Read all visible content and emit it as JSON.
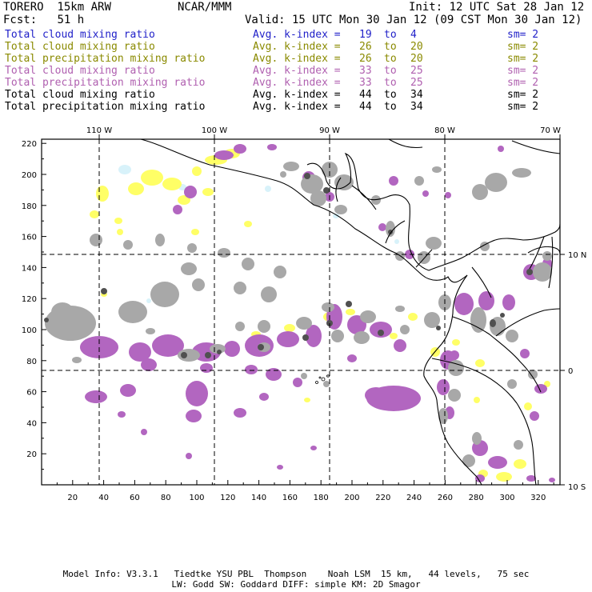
{
  "header": {
    "model": "TORERO",
    "resolution": "15km ARW",
    "org": "NCAR/MMM",
    "init": "Init: 12 UTC Sat 28 Jan 12",
    "fcst_label": "Fcst:",
    "fcst_value": "51 h",
    "valid": "Valid: 15 UTC Mon 30 Jan 12 (09 CST Mon 30 Jan 12)"
  },
  "legend": [
    {
      "field": "Total cloud mixing ratio",
      "index_label": "Avg. k-index =",
      "from": "19",
      "to_word": "to",
      "to": "4",
      "sm": "sm= 2",
      "color": "#1f1fc8"
    },
    {
      "field": "Total cloud mixing ratio",
      "index_label": "Avg. k-index =",
      "from": "26",
      "to_word": "to",
      "to": "20",
      "sm": "sm= 2",
      "color": "#8a8a00"
    },
    {
      "field": "Total precipitation mixing ratio",
      "index_label": "Avg. k-index =",
      "from": "26",
      "to_word": "to",
      "to": "20",
      "sm": "sm= 2",
      "color": "#8a8a00"
    },
    {
      "field": "Total cloud mixing ratio",
      "index_label": "Avg. k-index =",
      "from": "33",
      "to_word": "to",
      "to": "25",
      "sm": "sm= 2",
      "color": "#b060b0"
    },
    {
      "field": "Total precipitation mixing ratio",
      "index_label": "Avg. k-index =",
      "from": "33",
      "to_word": "to",
      "to": "25",
      "sm": "sm= 2",
      "color": "#b060b0"
    },
    {
      "field": "Total cloud mixing ratio",
      "index_label": "Avg. k-index =",
      "from": "44",
      "to_word": "to",
      "to": "34",
      "sm": "sm= 2",
      "color": "#000000"
    },
    {
      "field": "Total precipitation mixing ratio",
      "index_label": "Avg. k-index =",
      "from": "44",
      "to_word": "to",
      "to": "34",
      "sm": "sm= 2",
      "color": "#000000"
    }
  ],
  "map": {
    "lon_labels": [
      "110 W",
      "100 W",
      "90 W",
      "80 W",
      "70 W"
    ],
    "lat_labels": [
      "10 N",
      "0",
      "10 S"
    ],
    "x_ticks": [
      "20",
      "40",
      "60",
      "80",
      "100",
      "120",
      "140",
      "160",
      "180",
      "200",
      "220",
      "240",
      "260",
      "280",
      "300",
      "320"
    ],
    "y_ticks": [
      "20",
      "40",
      "60",
      "80",
      "100",
      "120",
      "140",
      "160",
      "180",
      "200",
      "220"
    ],
    "colors": {
      "cloud_light": "#d8f2fa",
      "cloud_yellow": "#ffff66",
      "precip_purple": "#b266c0",
      "cloud_gray": "#a8a8a8",
      "cloud_dark": "#505050",
      "coastline": "#000000"
    }
  },
  "footer": {
    "line1": "Model Info: V3.3.1   Tiedtke YSU PBL  Thompson    Noah LSM  15 km,   44 levels,   75 sec",
    "line2": "LW: Godd SW: Goddard DIFF: simple KM: 2D Smagor"
  }
}
